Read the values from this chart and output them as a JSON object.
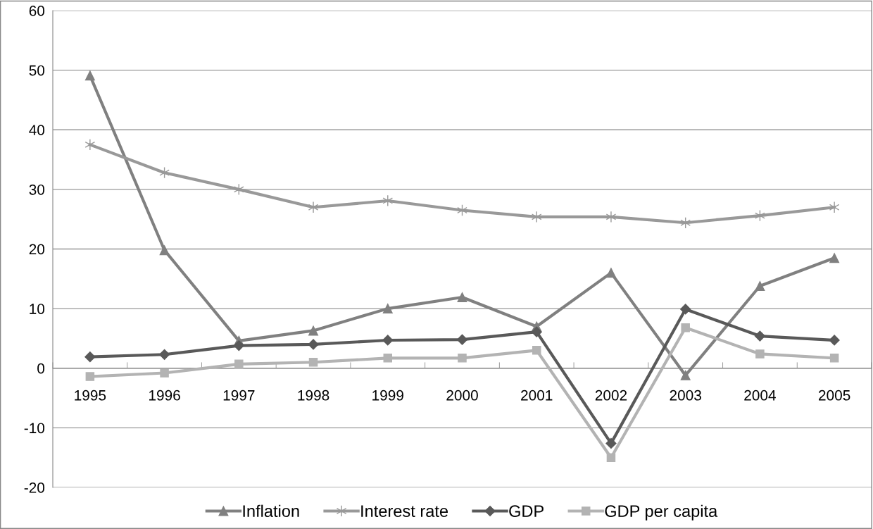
{
  "chart_data": {
    "type": "line",
    "categories": [
      "1995",
      "1996",
      "1997",
      "1998",
      "1999",
      "2000",
      "2001",
      "2002",
      "2003",
      "2004",
      "2005"
    ],
    "series": [
      {
        "name": "Inflation",
        "color": "#808080",
        "marker": "triangle",
        "values": [
          49.1,
          19.8,
          4.6,
          6.3,
          10.0,
          11.9,
          7.0,
          16.0,
          -1.2,
          13.8,
          18.5
        ]
      },
      {
        "name": "Interest rate",
        "color": "#999999",
        "marker": "cross",
        "values": [
          37.5,
          32.8,
          30.0,
          27.0,
          28.1,
          26.5,
          25.4,
          25.4,
          24.4,
          25.6,
          27.0
        ]
      },
      {
        "name": "GDP",
        "color": "#595959",
        "marker": "diamond",
        "values": [
          1.9,
          2.3,
          3.8,
          4.0,
          4.7,
          4.8,
          6.1,
          -12.6,
          9.9,
          5.4,
          4.7
        ]
      },
      {
        "name": "GDP per capita",
        "color": "#b3b3b3",
        "marker": "square",
        "values": [
          -1.4,
          -0.8,
          0.7,
          1.0,
          1.7,
          1.7,
          3.0,
          -15.0,
          6.8,
          2.4,
          1.7
        ]
      }
    ],
    "ylim": [
      -20,
      60
    ],
    "yticks": [
      -20,
      -10,
      0,
      10,
      20,
      30,
      40,
      50,
      60
    ],
    "grid": "y",
    "legend": "bottom",
    "line_style": "solid"
  }
}
